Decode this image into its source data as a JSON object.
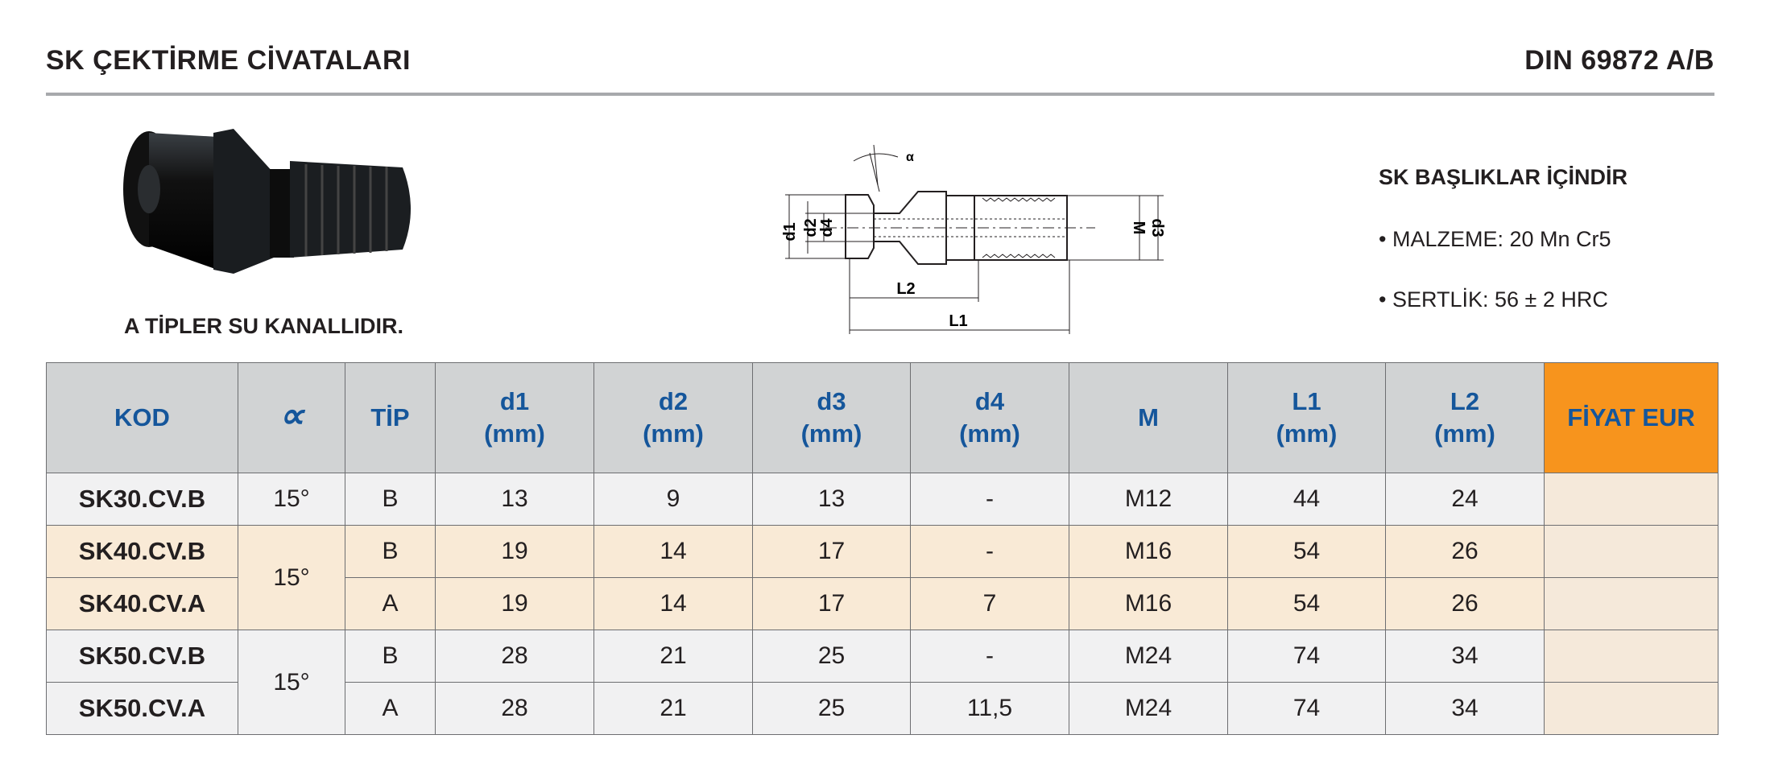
{
  "header": {
    "title": "SK ÇEKTİRME CİVATALARI",
    "standard": "DIN 69872 A/B"
  },
  "note": "A TİPLER SU KANALLIDIR.",
  "drawing": {
    "labels": [
      "d1",
      "d2",
      "d4",
      "M",
      "d3",
      "L2",
      "L1",
      "α"
    ]
  },
  "info": {
    "heading": "SK BAŞLIKLAR İÇİNDİR",
    "items": [
      "• MALZEME: 20 Mn Cr5",
      "• SERTLİK: 56 ± 2 HRC"
    ]
  },
  "colors": {
    "header_bg": "#d1d3d4",
    "header_text": "#15569b",
    "price_header": "#f7941d",
    "row_grey": "#f1f1f2",
    "row_beige": "#f9ead6"
  },
  "table": {
    "columns": [
      {
        "l1": "KOD"
      },
      {
        "icon": "angle-alpha-icon",
        "l1": "∝"
      },
      {
        "l1": "TİP"
      },
      {
        "l1": "d1",
        "l2": "(mm)"
      },
      {
        "l1": "d2",
        "l2": "(mm)"
      },
      {
        "l1": "d3",
        "l2": "(mm)"
      },
      {
        "l1": "d4",
        "l2": "(mm)"
      },
      {
        "l1": "M"
      },
      {
        "l1": "L1",
        "l2": "(mm)"
      },
      {
        "l1": "L2",
        "l2": "(mm)"
      },
      {
        "l1": "FİYAT EUR"
      }
    ],
    "rows": [
      {
        "kod": "SK30.CV.B",
        "angle": "15°",
        "tip": "B",
        "d1": "13",
        "d2": "9",
        "d3": "13",
        "d4": "-",
        "m": "M12",
        "l1": "44",
        "l2": "24",
        "price": ""
      },
      {
        "kod": "SK40.CV.B",
        "angle": "15°",
        "tip": "B",
        "d1": "19",
        "d2": "14",
        "d3": "17",
        "d4": "-",
        "m": "M16",
        "l1": "54",
        "l2": "26",
        "price": ""
      },
      {
        "kod": "SK40.CV.A",
        "tip": "A",
        "d1": "19",
        "d2": "14",
        "d3": "17",
        "d4": "7",
        "m": "M16",
        "l1": "54",
        "l2": "26",
        "price": ""
      },
      {
        "kod": "SK50.CV.B",
        "angle": "15°",
        "tip": "B",
        "d1": "28",
        "d2": "21",
        "d3": "25",
        "d4": "-",
        "m": "M24",
        "l1": "74",
        "l2": "34",
        "price": ""
      },
      {
        "kod": "SK50.CV.A",
        "tip": "A",
        "d1": "28",
        "d2": "21",
        "d3": "25",
        "d4": "11,5",
        "m": "M24",
        "l1": "74",
        "l2": "34",
        "price": ""
      }
    ]
  }
}
